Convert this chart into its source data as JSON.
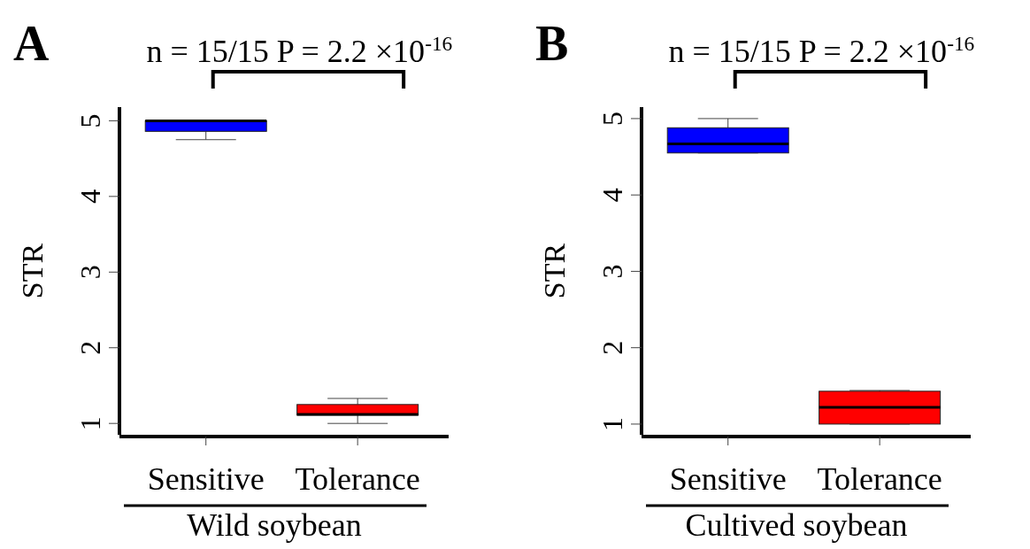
{
  "chart_data": [
    {
      "type": "box",
      "title": "A",
      "annotations": [
        "n = 15/15  P = 2.2 ×10$^{-16}$"
      ],
      "categories": [
        "Sensitive",
        "Tolerance"
      ],
      "xlabel": "Wild soybean",
      "ylabel": "STR",
      "colors": [
        "#0000ff",
        "#ff0000"
      ],
      "boxes": [
        {
          "low": 4.75,
          "q1": 4.86,
          "median": 5.0,
          "q3": 5.0,
          "high": 5.0
        },
        {
          "low": 1.0,
          "q1": 1.11,
          "median": 1.12,
          "q3": 1.25,
          "high": 1.33
        }
      ],
      "ylim": [
        0.85,
        5.18
      ],
      "yticks": [
        1,
        2,
        3,
        4,
        5
      ]
    },
    {
      "type": "box",
      "title": "B",
      "annotations": [
        "n = 15/15  P = 2.2 ×10$^{-16}$"
      ],
      "categories": [
        "Sensitive",
        "Tolerance"
      ],
      "xlabel": "Cultived soybean",
      "ylabel": "STR",
      "colors": [
        "#0000ff",
        "#ff0000"
      ],
      "boxes": [
        {
          "low": 4.55,
          "q1": 4.55,
          "median": 4.67,
          "q3": 4.88,
          "high": 5.0
        },
        {
          "low": 1.0,
          "q1": 1.0,
          "median": 1.22,
          "q3": 1.43,
          "high": 1.44
        }
      ],
      "ylim": [
        0.86,
        5.15
      ],
      "yticks": [
        1,
        2,
        3,
        4,
        5
      ]
    }
  ]
}
